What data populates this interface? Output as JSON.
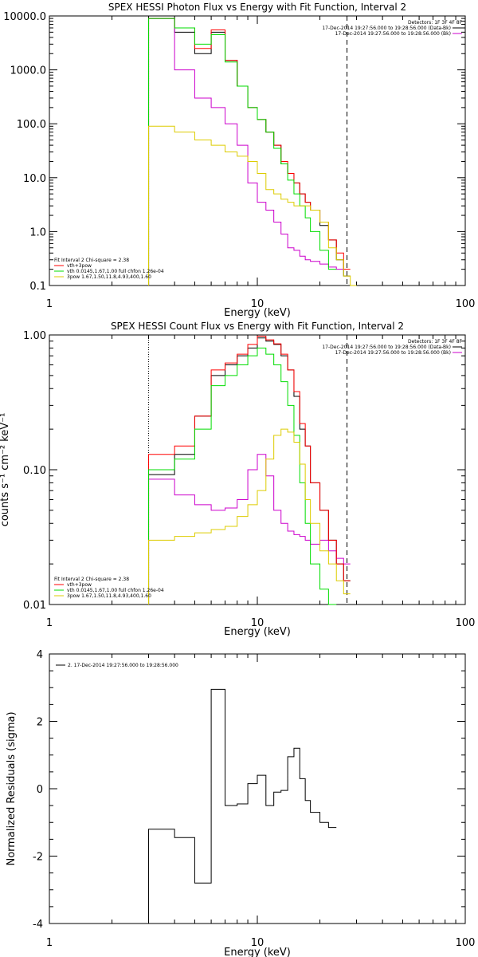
{
  "chart_data": [
    {
      "type": "line",
      "title": "SPEX HESSI Photon Flux vs Energy with Fit Function, Interval 2",
      "xlabel": "Energy (keV)",
      "ylabel": "",
      "x_scale": "log",
      "y_scale": "log",
      "xlim": [
        1,
        100
      ],
      "ylim": [
        0.1,
        10000
      ],
      "x_ticks": [
        "1",
        "10",
        "100"
      ],
      "y_ticks": [
        "0.1",
        "1.0",
        "10.0",
        "100.0",
        "1000.0",
        "10000.0"
      ],
      "legend_top_right": [
        "Detectors: 1F 3F 4F 8F",
        "17-Dec-2014 19:27:56.000 to 19:28:56.000 (Data-Bk)",
        "17-Dec-2014 19:27:56.000 to 19:28:56.000 (Bk)"
      ],
      "legend_bottom_left": [
        "Fit Interval 2   Chi-square = 2.38",
        "vth+3pow",
        "vth 0.0145,1.67,1.00  full chfon 1.26e-04",
        "3pow 1.67,1.50,11.8,4.93,400,1.60"
      ],
      "fit_start_x": 3.0,
      "fit_end_x": 27.0,
      "bin_edges": [
        3.0,
        4.0,
        5.0,
        6.0,
        7.0,
        8.0,
        9.0,
        10.0,
        11.0,
        12.0,
        13.0,
        14.0,
        15.0,
        16.0,
        17.0,
        18.0,
        20.0,
        22.0,
        24.0,
        26.0,
        28.0,
        30.0,
        32.0
      ],
      "series": [
        {
          "name": "Data-Bk",
          "color": "#000000",
          "values": [
            9000,
            5000,
            2000,
            5000,
            1500,
            500,
            200,
            120,
            70,
            40,
            18,
            12,
            8,
            5,
            3.5,
            2.5,
            1.3,
            0.7,
            0.3,
            0.15,
            null,
            null
          ]
        },
        {
          "name": "Bk",
          "color": "#cc00cc",
          "values": [
            9000,
            1000,
            300,
            200,
            100,
            40,
            8,
            3.5,
            2.5,
            1.5,
            0.9,
            0.5,
            0.45,
            0.35,
            0.3,
            0.28,
            0.25,
            0.22,
            0.2,
            null,
            null,
            null
          ]
        },
        {
          "name": "vth+3pow",
          "color": "#ff0000",
          "values": [
            9000,
            6000,
            2500,
            5500,
            1500,
            500,
            200,
            120,
            70,
            40,
            20,
            12,
            8,
            5,
            3.5,
            2.5,
            1.5,
            0.7,
            0.4,
            0.2,
            null,
            null
          ]
        },
        {
          "name": "vth 0.0145,1.67,1.00  full chfon 1.26e-04",
          "color": "#00dd00",
          "values": [
            9000,
            6000,
            3000,
            4500,
            1400,
            500,
            200,
            120,
            70,
            35,
            18,
            9,
            5,
            3,
            1.8,
            1.0,
            0.45,
            0.2,
            null,
            null,
            null,
            null
          ]
        },
        {
          "name": "3pow 1.67,1.50,11.8,4.93,400,1.60",
          "color": "#ddcc00",
          "values": [
            90,
            70,
            50,
            40,
            30,
            25,
            20,
            12,
            6,
            5,
            4,
            3.5,
            3,
            3,
            3,
            2.5,
            1.5,
            0.5,
            0.3,
            0.15,
            0.1,
            null
          ]
        }
      ]
    },
    {
      "type": "line",
      "title": "SPEX HESSI Count Flux vs Energy with Fit Function, Interval 2",
      "xlabel": "Energy (keV)",
      "ylabel": "counts s⁻¹ cm⁻² keV⁻¹",
      "x_scale": "log",
      "y_scale": "log",
      "xlim": [
        1,
        100
      ],
      "ylim": [
        0.01,
        1.0
      ],
      "x_ticks": [
        "1",
        "10",
        "100"
      ],
      "y_ticks": [
        "0.01",
        "0.10",
        "1.00"
      ],
      "legend_top_right": [
        "Detectors: 1F 3F 4F 8F",
        "17-Dec-2014 19:27:56.000 to 19:28:56.000 (Data-Bk)",
        "17-Dec-2014 19:27:56.000 to 19:28:56.000 (Bk)"
      ],
      "legend_bottom_left": [
        "Fit Interval 2   Chi-square = 2.38",
        "vth+3pow",
        "vth 0.0145,1.67,1.00  full chfon 1.26e-04",
        "3pow 1.67,1.50,11.8,4.93,400,1.60"
      ],
      "fit_start_x": 3.0,
      "fit_end_x": 27.0,
      "bin_edges": [
        3.0,
        4.0,
        5.0,
        6.0,
        7.0,
        8.0,
        9.0,
        10.0,
        11.0,
        12.0,
        13.0,
        14.0,
        15.0,
        16.0,
        17.0,
        18.0,
        20.0,
        22.0,
        24.0,
        26.0,
        28.0,
        30.0,
        32.0
      ],
      "series": [
        {
          "name": "Data-Bk",
          "color": "#000000",
          "values": [
            0.092,
            0.13,
            0.25,
            0.5,
            0.6,
            0.7,
            0.8,
            0.95,
            0.9,
            0.85,
            0.7,
            0.55,
            0.35,
            0.2,
            0.15,
            0.08,
            0.05,
            0.03,
            0.02,
            0.015,
            null,
            null
          ]
        },
        {
          "name": "Bk",
          "color": "#cc00cc",
          "values": [
            0.085,
            0.065,
            0.055,
            0.05,
            0.052,
            0.06,
            0.1,
            0.13,
            0.09,
            0.05,
            0.04,
            0.035,
            0.033,
            0.032,
            0.03,
            0.028,
            0.03,
            0.025,
            0.022,
            0.02,
            null,
            null
          ]
        },
        {
          "name": "vth+3pow",
          "color": "#ff0000",
          "values": [
            0.13,
            0.15,
            0.25,
            0.55,
            0.62,
            0.72,
            0.85,
            0.98,
            0.92,
            0.86,
            0.72,
            0.55,
            0.38,
            0.22,
            0.15,
            0.08,
            0.05,
            0.03,
            0.02,
            0.015,
            null,
            null
          ]
        },
        {
          "name": "vth 0.0145,1.67,1.00  full chfon 1.26e-04",
          "color": "#00dd00",
          "values": [
            0.1,
            0.12,
            0.2,
            0.42,
            0.5,
            0.6,
            0.7,
            0.8,
            0.72,
            0.6,
            0.45,
            0.3,
            0.18,
            0.08,
            0.04,
            0.02,
            0.013,
            0.01,
            null,
            null,
            null,
            null
          ]
        },
        {
          "name": "3pow 1.67,1.50,11.8,4.93,400,1.60",
          "color": "#ddcc00",
          "values": [
            0.03,
            0.032,
            0.034,
            0.036,
            0.038,
            0.045,
            0.055,
            0.07,
            0.12,
            0.18,
            0.2,
            0.19,
            0.16,
            0.11,
            0.06,
            0.04,
            0.025,
            0.02,
            0.015,
            0.012,
            null,
            null
          ]
        }
      ]
    },
    {
      "type": "line",
      "title": "",
      "xlabel": "Energy (keV)",
      "ylabel": "Normalized Residuals (sigma)",
      "x_scale": "log",
      "y_scale": "linear",
      "xlim": [
        1,
        100
      ],
      "ylim": [
        -4,
        4
      ],
      "x_ticks": [
        "1",
        "10",
        "100"
      ],
      "y_ticks": [
        "-4",
        "-2",
        "0",
        "2",
        "4"
      ],
      "legend_top_left": [
        "2. 17-Dec-2014 19:27:56.000 to 19:28:56.000"
      ],
      "bin_edges": [
        3.0,
        4.0,
        5.0,
        6.0,
        7.0,
        8.0,
        9.0,
        10.0,
        11.0,
        12.0,
        13.0,
        14.0,
        15.0,
        16.0,
        17.0,
        18.0,
        20.0,
        22.0,
        24.0,
        26.0,
        28.0
      ],
      "series": [
        {
          "name": "2. 17-Dec-2014 19:27:56.000 to 19:28:56.000",
          "color": "#000000",
          "values": [
            -1.2,
            -1.45,
            -2.8,
            2.95,
            -0.5,
            -0.45,
            0.15,
            0.4,
            -0.5,
            -0.1,
            -0.05,
            0.95,
            1.2,
            0.3,
            -0.35,
            -0.7,
            -1.0,
            -1.15,
            null,
            null
          ]
        }
      ]
    }
  ]
}
